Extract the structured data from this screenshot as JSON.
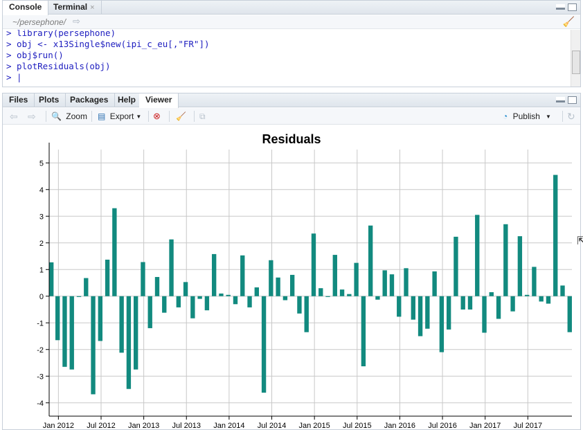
{
  "console_pane": {
    "tabs": [
      {
        "label": "Console",
        "active": true
      },
      {
        "label": "Terminal",
        "active": false,
        "close": "×"
      }
    ],
    "path": "~/persephone/",
    "lines": [
      "> library(persephone)",
      "> obj <- x13Single$new(ipi_c_eu[,\"FR\"])",
      "> obj$run()",
      "> plotResiduals(obj)",
      "> |"
    ]
  },
  "viewer_pane": {
    "tabs": [
      {
        "label": "Files",
        "active": false
      },
      {
        "label": "Plots",
        "active": false
      },
      {
        "label": "Packages",
        "active": false
      },
      {
        "label": "Help",
        "active": false
      },
      {
        "label": "Viewer",
        "active": true
      }
    ],
    "toolbar": {
      "zoom_label": "Zoom",
      "export_label": "Export",
      "publish_label": "Publish"
    }
  },
  "colors": {
    "bar": "#128a7f",
    "grid": "#c8c8c8",
    "axis": "#000000",
    "console_text": "#1d1dbf"
  },
  "chart_data": {
    "type": "bar",
    "title": "Residuals",
    "xlabel": "",
    "ylabel": "",
    "ylim": [
      -4.5,
      5.5
    ],
    "yticks": [
      -4,
      -3,
      -2,
      -1,
      0,
      1,
      2,
      3,
      4,
      5
    ],
    "grid": true,
    "x_tick_labels": [
      "Jan 2012",
      "Jul 2012",
      "Jan 2013",
      "Jul 2013",
      "Jan 2014",
      "Jul 2014",
      "Jan 2015",
      "Jul 2015",
      "Jan 2016",
      "Jul 2016",
      "Jan 2017",
      "Jul 2017"
    ],
    "start": "2011-12",
    "frequency": "monthly",
    "values": [
      1.27,
      -1.65,
      -2.65,
      -2.75,
      -0.03,
      0.68,
      -3.68,
      -1.68,
      1.37,
      3.3,
      -2.12,
      -3.48,
      -2.75,
      1.28,
      -1.2,
      0.72,
      -0.62,
      2.13,
      -0.42,
      0.53,
      -0.83,
      -0.1,
      -0.53,
      1.58,
      0.1,
      0.05,
      -0.3,
      1.53,
      -0.42,
      0.33,
      -3.62,
      1.35,
      0.7,
      -0.15,
      0.8,
      -0.65,
      -1.35,
      2.35,
      0.3,
      -0.03,
      1.55,
      0.25,
      0.08,
      1.25,
      -2.63,
      2.65,
      -0.13,
      0.97,
      0.82,
      -0.77,
      1.05,
      -0.88,
      -1.5,
      -1.22,
      0.93,
      -2.1,
      -1.25,
      2.23,
      -0.5,
      -0.5,
      3.05,
      -1.37,
      0.15,
      -0.85,
      2.7,
      -0.57,
      2.25,
      0.05,
      1.1,
      -0.2,
      -0.28,
      4.55,
      0.4,
      -1.35
    ]
  }
}
